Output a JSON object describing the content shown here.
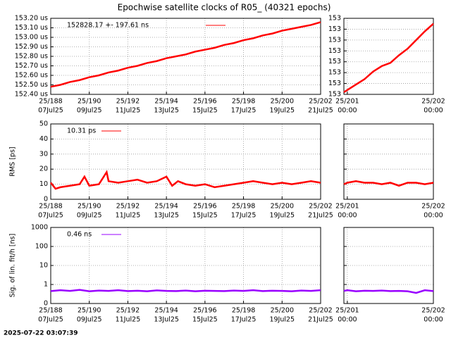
{
  "title": "Epochwise satellite clocks of R05_ (40321 epochs)",
  "footer": "2025-07-22 03:07:39",
  "chart_data": [
    {
      "type": "line",
      "xlim": [
        188,
        202
      ],
      "ylim": [
        152.4,
        153.2
      ],
      "color": "#ff0000",
      "grid": true,
      "legend": "upper left",
      "yticks": [
        {
          "value": 152.4,
          "label": "152.40 us"
        },
        {
          "value": 152.5,
          "label": "152.50 us"
        },
        {
          "value": 152.6,
          "label": "152.60 us"
        },
        {
          "value": 152.7,
          "label": "152.70 us"
        },
        {
          "value": 152.8,
          "label": "152.80 us"
        },
        {
          "value": 152.9,
          "label": "152.90 us"
        },
        {
          "value": 153.0,
          "label": "153.00 us"
        },
        {
          "value": 153.1,
          "label": "153.10 us"
        },
        {
          "value": 153.2,
          "label": "153.20 us"
        }
      ],
      "xticks": [
        {
          "value": 188,
          "label": "25/188",
          "sublabel": "07Jul25"
        },
        {
          "value": 190,
          "label": "25/190",
          "sublabel": "09Jul25"
        },
        {
          "value": 192,
          "label": "25/192",
          "sublabel": "11Jul25"
        },
        {
          "value": 194,
          "label": "25/194",
          "sublabel": "13Jul25"
        },
        {
          "value": 196,
          "label": "25/196",
          "sublabel": "15Jul25"
        },
        {
          "value": 198,
          "label": "25/198",
          "sublabel": "17Jul25"
        },
        {
          "value": 200,
          "label": "25/200",
          "sublabel": "19Jul25"
        },
        {
          "value": 202,
          "label": "25/202",
          "sublabel": "21Jul25"
        }
      ],
      "x": [
        188,
        188.5,
        189,
        189.5,
        190,
        190.5,
        191,
        191.5,
        192,
        192.5,
        193,
        193.5,
        194,
        194.5,
        195,
        195.5,
        196,
        196.5,
        197,
        197.5,
        198,
        198.5,
        199,
        199.5,
        200,
        200.5,
        201,
        201.5,
        202
      ],
      "series": [
        {
          "name": "152828.17 +- 197.61 ns",
          "color": "#ff0000",
          "values": [
            152.48,
            152.5,
            152.53,
            152.55,
            152.58,
            152.6,
            152.63,
            152.65,
            152.68,
            152.7,
            152.73,
            152.75,
            152.78,
            152.8,
            152.82,
            152.85,
            152.87,
            152.89,
            152.92,
            152.94,
            152.97,
            152.99,
            153.02,
            153.04,
            153.07,
            153.09,
            153.11,
            153.13,
            153.16
          ]
        }
      ]
    },
    {
      "type": "line",
      "xlim": [
        200.96,
        202
      ],
      "ylim": [
        153.09,
        153.16
      ],
      "grid": true,
      "yticks": [
        {
          "value": 153.09,
          "label": "153"
        },
        {
          "value": 153.1,
          "label": "153"
        },
        {
          "value": 153.11,
          "label": "153"
        },
        {
          "value": 153.12,
          "label": "153"
        },
        {
          "value": 153.13,
          "label": "153"
        },
        {
          "value": 153.14,
          "label": "153"
        },
        {
          "value": 153.15,
          "label": "153"
        },
        {
          "value": 153.16,
          "label": "153"
        }
      ],
      "xticks": [
        {
          "value": 201,
          "label": "25/201",
          "sublabel": "00:00"
        },
        {
          "value": 202,
          "label": "25/202",
          "sublabel": "00:00"
        }
      ],
      "x": [
        200.96,
        201,
        201.1,
        201.2,
        201.3,
        201.4,
        201.5,
        201.6,
        201.7,
        201.8,
        201.9,
        202
      ],
      "series": [
        {
          "color": "#ff0000",
          "values": [
            153.092,
            153.094,
            153.099,
            153.104,
            153.111,
            153.116,
            153.119,
            153.126,
            153.132,
            153.14,
            153.148,
            153.155
          ]
        }
      ]
    },
    {
      "type": "line",
      "xlim": [
        188,
        202
      ],
      "ylim": [
        0,
        50
      ],
      "grid": true,
      "ylabel": "RMS [ps]",
      "legend": "upper left",
      "yticks": [
        0,
        10,
        20,
        30,
        40,
        50
      ],
      "xticks": [
        {
          "value": 188,
          "label": "25/188",
          "sublabel": "07Jul25"
        },
        {
          "value": 190,
          "label": "25/190",
          "sublabel": "09Jul25"
        },
        {
          "value": 192,
          "label": "25/192",
          "sublabel": "11Jul25"
        },
        {
          "value": 194,
          "label": "25/194",
          "sublabel": "13Jul25"
        },
        {
          "value": 196,
          "label": "25/196",
          "sublabel": "15Jul25"
        },
        {
          "value": 198,
          "label": "25/198",
          "sublabel": "17Jul25"
        },
        {
          "value": 200,
          "label": "25/200",
          "sublabel": "19Jul25"
        },
        {
          "value": 202,
          "label": "25/202",
          "sublabel": "21Jul25"
        }
      ],
      "x": [
        188,
        188.25,
        188.5,
        189,
        189.5,
        189.75,
        190,
        190.5,
        190.9,
        191,
        191.5,
        192,
        192.5,
        193,
        193.5,
        194,
        194.3,
        194.6,
        195,
        195.5,
        196,
        196.5,
        197,
        197.5,
        198,
        198.5,
        199,
        199.5,
        200,
        200.5,
        201,
        201.5,
        202
      ],
      "series": [
        {
          "name": "10.31 ps",
          "color": "#ff0000",
          "values": [
            11,
            7,
            8,
            9,
            10,
            15,
            9,
            10,
            18,
            12,
            11,
            12,
            13,
            11,
            12,
            15,
            9,
            12,
            10,
            9,
            10,
            8,
            9,
            10,
            11,
            12,
            11,
            10,
            11,
            10,
            11,
            12,
            11
          ]
        }
      ]
    },
    {
      "type": "line",
      "xlim": [
        200.96,
        202
      ],
      "ylim": [
        0,
        50
      ],
      "grid": true,
      "show_ytick_labels": false,
      "yticks": [
        0,
        10,
        20,
        30,
        40,
        50
      ],
      "xticks": [
        {
          "value": 201,
          "label": "25/201",
          "sublabel": "00:00"
        },
        {
          "value": 202,
          "label": "25/202",
          "sublabel": "00:00"
        }
      ],
      "x": [
        200.96,
        201,
        201.1,
        201.2,
        201.3,
        201.4,
        201.5,
        201.6,
        201.7,
        201.8,
        201.9,
        202
      ],
      "series": [
        {
          "color": "#ff0000",
          "values": [
            10,
            11,
            12,
            11,
            11,
            10,
            11,
            9,
            11,
            11,
            10,
            11
          ]
        }
      ]
    },
    {
      "type": "line",
      "xlim": [
        188,
        202
      ],
      "ylim": [
        0.1,
        1000
      ],
      "log": true,
      "grid": true,
      "ylabel": "Sig. of lin. fit/h [ns]",
      "legend": "upper left",
      "yticks": [
        {
          "value": 0.1,
          "label": "0"
        },
        1,
        10,
        100,
        1000
      ],
      "xticks": [
        {
          "value": 188,
          "label": "25/188",
          "sublabel": "07Jul25"
        },
        {
          "value": 190,
          "label": "25/190",
          "sublabel": "09Jul25"
        },
        {
          "value": 192,
          "label": "25/192",
          "sublabel": "11Jul25"
        },
        {
          "value": 194,
          "label": "25/194",
          "sublabel": "13Jul25"
        },
        {
          "value": 196,
          "label": "25/196",
          "sublabel": "15Jul25"
        },
        {
          "value": 198,
          "label": "25/198",
          "sublabel": "17Jul25"
        },
        {
          "value": 200,
          "label": "25/200",
          "sublabel": "19Jul25"
        },
        {
          "value": 202,
          "label": "25/202",
          "sublabel": "21Jul25"
        }
      ],
      "x": [
        188,
        188.5,
        189,
        189.5,
        190,
        190.5,
        191,
        191.5,
        192,
        192.5,
        193,
        193.5,
        194,
        194.5,
        195,
        195.5,
        196,
        196.5,
        197,
        197.5,
        198,
        198.5,
        199,
        199.5,
        200,
        200.5,
        201,
        201.5,
        202
      ],
      "series": [
        {
          "name": "0.46 ns",
          "color": "#9900ff",
          "values": [
            0.45,
            0.5,
            0.46,
            0.52,
            0.44,
            0.48,
            0.46,
            0.5,
            0.45,
            0.47,
            0.44,
            0.49,
            0.46,
            0.45,
            0.48,
            0.44,
            0.47,
            0.46,
            0.45,
            0.48,
            0.46,
            0.5,
            0.45,
            0.47,
            0.46,
            0.44,
            0.48,
            0.46,
            0.5
          ]
        }
      ]
    },
    {
      "type": "line",
      "xlim": [
        200.96,
        202
      ],
      "ylim": [
        0.1,
        1000
      ],
      "log": true,
      "grid": true,
      "show_ytick_labels": false,
      "yticks": [
        0.1,
        1,
        10,
        100,
        1000
      ],
      "xticks": [
        {
          "value": 201,
          "label": "25/201",
          "sublabel": "00:00"
        },
        {
          "value": 202,
          "label": "25/202",
          "sublabel": "00:00"
        }
      ],
      "x": [
        200.96,
        201,
        201.1,
        201.2,
        201.3,
        201.4,
        201.5,
        201.6,
        201.7,
        201.8,
        201.9,
        202
      ],
      "series": [
        {
          "color": "#9900ff",
          "values": [
            0.46,
            0.5,
            0.44,
            0.47,
            0.46,
            0.48,
            0.45,
            0.46,
            0.44,
            0.36,
            0.5,
            0.45
          ]
        }
      ]
    }
  ]
}
